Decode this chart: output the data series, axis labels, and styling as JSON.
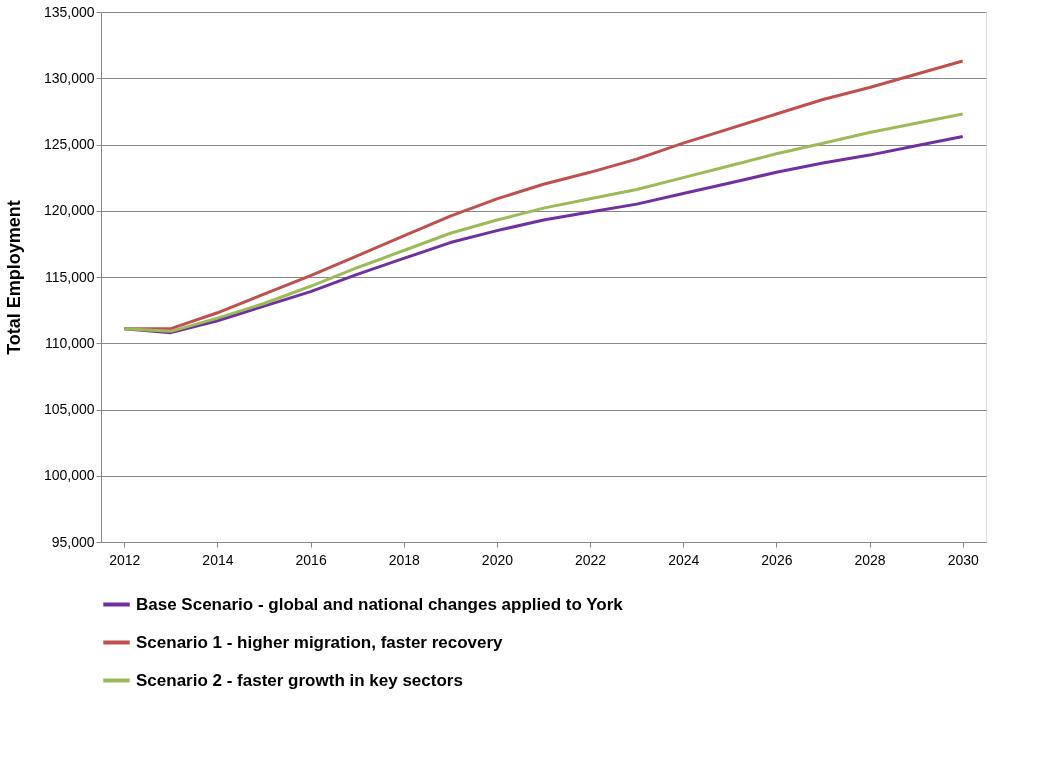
{
  "chart_data": {
    "type": "line",
    "ylabel": "Total Employment",
    "x": [
      2012,
      2013,
      2014,
      2015,
      2016,
      2017,
      2018,
      2019,
      2020,
      2021,
      2022,
      2023,
      2024,
      2025,
      2026,
      2027,
      2028,
      2029,
      2030
    ],
    "series": [
      {
        "name": "Base Scenario - global and national changes applied to York",
        "color": "#7030a0",
        "values": [
          111100,
          110800,
          111700,
          112800,
          113900,
          115200,
          116400,
          117600,
          118500,
          119300,
          119900,
          120500,
          121300,
          122100,
          122900,
          123600,
          124200,
          124900,
          125600
        ]
      },
      {
        "name": "Scenario 1 - higher migration, faster recovery",
        "color": "#c0504d",
        "values": [
          111100,
          111100,
          112300,
          113700,
          115100,
          116600,
          118100,
          119600,
          120900,
          122000,
          122900,
          123900,
          125100,
          126200,
          127300,
          128400,
          129300,
          130300,
          131300
        ]
      },
      {
        "name": "Scenario 2 - faster growth in key sectors",
        "color": "#9bbb59",
        "values": [
          111100,
          110900,
          111900,
          113000,
          114300,
          115700,
          117000,
          118300,
          119300,
          120200,
          120900,
          121600,
          122500,
          123400,
          124300,
          125100,
          125900,
          126600,
          127300
        ]
      }
    ],
    "xlim": [
      2011.5,
      2030.5
    ],
    "xticks": [
      2012,
      2014,
      2016,
      2018,
      2020,
      2022,
      2024,
      2026,
      2028,
      2030
    ],
    "ylim": [
      95000,
      135000
    ],
    "yticks": [
      {
        "value": 95000,
        "label": "95,000"
      },
      {
        "value": 100000,
        "label": "100,000"
      },
      {
        "value": 105000,
        "label": "105,000"
      },
      {
        "value": 110000,
        "label": "110,000"
      },
      {
        "value": 115000,
        "label": "115,000"
      },
      {
        "value": 120000,
        "label": "120,000"
      },
      {
        "value": 125000,
        "label": "125,000"
      },
      {
        "value": 130000,
        "label": "130,000"
      },
      {
        "value": 135000,
        "label": "135,000"
      }
    ],
    "grid": "y",
    "legend": "bottom",
    "marker": "none",
    "line_style": "solid"
  }
}
